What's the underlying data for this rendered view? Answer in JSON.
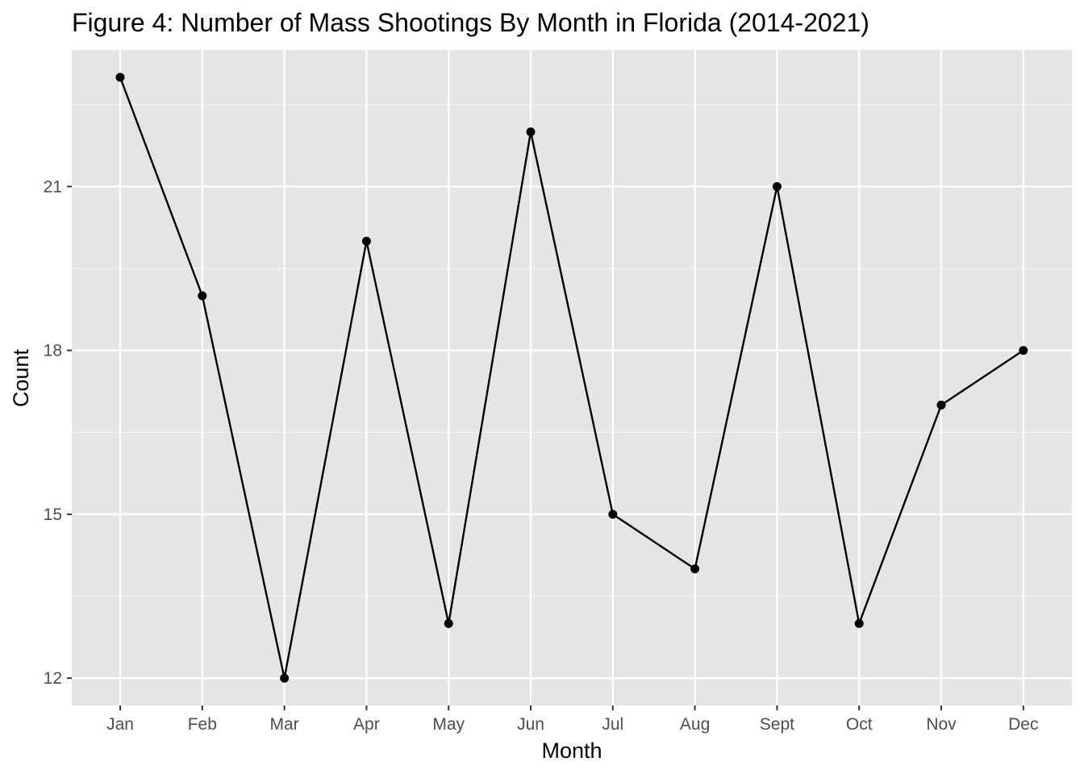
{
  "chart_data": {
    "type": "line",
    "title": "Figure 4: Number of Mass Shootings By Month in Florida (2014-2021)",
    "xlabel": "Month",
    "ylabel": "Count",
    "categories": [
      "Jan",
      "Feb",
      "Mar",
      "Apr",
      "May",
      "Jun",
      "Jul",
      "Aug",
      "Sept",
      "Oct",
      "Nov",
      "Dec"
    ],
    "series": [
      {
        "values": [
          23,
          19,
          12,
          20,
          13,
          22,
          15,
          14,
          21,
          13,
          17,
          18
        ]
      }
    ],
    "y_ticks": [
      12,
      15,
      18,
      21
    ],
    "y_tick_labels": [
      "12",
      "15",
      "18",
      "21"
    ],
    "ylim": [
      11.5,
      23.5
    ],
    "grid": true,
    "colors": {
      "panel": "#e5e5e5",
      "grid_major": "#ffffff",
      "grid_minor": "#f2f2f2",
      "line": "#000000",
      "point": "#000000",
      "tick": "#333333"
    }
  }
}
